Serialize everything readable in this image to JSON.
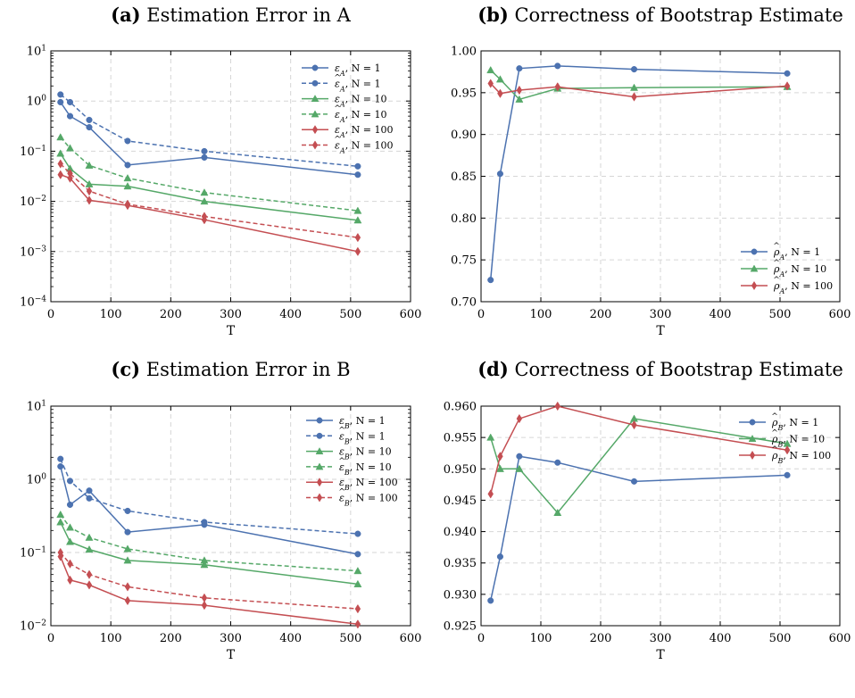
{
  "colors": {
    "blue": "#4c72b0",
    "green": "#55a868",
    "red": "#c44e52"
  },
  "chart_data": [
    {
      "type": "line",
      "panel_label": "(a)",
      "title": "Estimation Error in A",
      "xlabel": "T",
      "ylabel": "",
      "xlim": [
        0,
        600
      ],
      "ylim": [
        0.0001,
        10
      ],
      "yscale": "log",
      "grid": true,
      "legend_position": "top-right",
      "xticks": [
        "0",
        "100",
        "200",
        "300",
        "400",
        "500",
        "600"
      ],
      "yticks": [
        {
          "value": 10,
          "base": "10",
          "exp": "1"
        },
        {
          "value": 1,
          "base": "10",
          "exp": "0"
        },
        {
          "value": 0.1,
          "base": "10",
          "exp": "−1"
        },
        {
          "value": 0.01,
          "base": "10",
          "exp": "−2"
        },
        {
          "value": 0.001,
          "base": "10",
          "exp": "−3"
        },
        {
          "value": 0.0001,
          "base": "10",
          "exp": "−4"
        }
      ],
      "x": [
        16,
        32,
        64,
        128,
        256,
        512
      ],
      "series": [
        {
          "name": "ε_A, N = 1",
          "sym": "ε",
          "sub": "A",
          "hat": false,
          "rest": ", N = 1",
          "color": "blue",
          "dashed": false,
          "marker": "circle",
          "values": [
            0.95,
            0.5,
            0.3,
            0.053,
            0.075,
            0.034
          ]
        },
        {
          "name": "ε̂_A, N = 1",
          "sym": "ε",
          "sub": "A",
          "hat": true,
          "rest": ", N = 1",
          "color": "blue",
          "dashed": true,
          "marker": "circle",
          "values": [
            1.35,
            0.95,
            0.42,
            0.16,
            0.1,
            0.05
          ]
        },
        {
          "name": "ε_A, N = 10",
          "sym": "ε",
          "sub": "A",
          "hat": false,
          "rest": ", N = 10",
          "color": "green",
          "dashed": false,
          "marker": "triangle",
          "values": [
            0.09,
            0.045,
            0.022,
            0.02,
            0.01,
            0.0042
          ]
        },
        {
          "name": "ε̂_A, N = 10",
          "sym": "ε",
          "sub": "A",
          "hat": true,
          "rest": ", N = 10",
          "color": "green",
          "dashed": true,
          "marker": "triangle",
          "values": [
            0.19,
            0.115,
            0.052,
            0.029,
            0.015,
            0.0065
          ]
        },
        {
          "name": "ε_A, N = 100",
          "sym": "ε",
          "sub": "A",
          "hat": false,
          "rest": ", N = 100",
          "color": "red",
          "dashed": false,
          "marker": "diamond",
          "values": [
            0.034,
            0.029,
            0.0105,
            0.0083,
            0.0043,
            0.001
          ]
        },
        {
          "name": "ε̂_A, N = 100",
          "sym": "ε",
          "sub": "A",
          "hat": true,
          "rest": ", N = 100",
          "color": "red",
          "dashed": true,
          "marker": "diamond",
          "values": [
            0.056,
            0.036,
            0.016,
            0.0088,
            0.005,
            0.0019
          ]
        }
      ]
    },
    {
      "type": "line",
      "panel_label": "(b)",
      "title": "Correctness of Bootstrap Estimate",
      "xlabel": "T",
      "ylabel": "",
      "xlim": [
        0,
        600
      ],
      "ylim": [
        0.7,
        1.0
      ],
      "yscale": "linear",
      "grid": true,
      "legend_position": "bottom-right",
      "xticks": [
        "0",
        "100",
        "200",
        "300",
        "400",
        "500",
        "600"
      ],
      "yticks": [
        {
          "value": 1.0,
          "label": "1.00"
        },
        {
          "value": 0.95,
          "label": "0.95"
        },
        {
          "value": 0.9,
          "label": "0.90"
        },
        {
          "value": 0.85,
          "label": "0.85"
        },
        {
          "value": 0.8,
          "label": "0.80"
        },
        {
          "value": 0.75,
          "label": "0.75"
        },
        {
          "value": 0.7,
          "label": "0.70"
        }
      ],
      "x": [
        16,
        32,
        64,
        128,
        256,
        512
      ],
      "series": [
        {
          "name": "ρ̂_A, N = 1",
          "sym": "ρ",
          "sub": "A",
          "hat": true,
          "rest": ", N = 1",
          "color": "blue",
          "dashed": false,
          "marker": "circle",
          "values": [
            0.726,
            0.853,
            0.979,
            0.982,
            0.978,
            0.973
          ]
        },
        {
          "name": "ρ̂_A, N = 10",
          "sym": "ρ",
          "sub": "A",
          "hat": true,
          "rest": ", N = 10",
          "color": "green",
          "dashed": false,
          "marker": "triangle",
          "values": [
            0.977,
            0.966,
            0.942,
            0.955,
            0.956,
            0.957
          ]
        },
        {
          "name": "ρ̂_A, N = 100",
          "sym": "ρ",
          "sub": "A",
          "hat": true,
          "rest": ", N = 100",
          "color": "red",
          "dashed": false,
          "marker": "diamond",
          "values": [
            0.961,
            0.949,
            0.953,
            0.957,
            0.945,
            0.958
          ]
        }
      ]
    },
    {
      "type": "line",
      "panel_label": "(c)",
      "title": "Estimation Error in B",
      "xlabel": "T",
      "ylabel": "",
      "xlim": [
        0,
        600
      ],
      "ylim": [
        0.01,
        10
      ],
      "yscale": "log",
      "grid": true,
      "legend_position": "top-right",
      "xticks": [
        "0",
        "100",
        "200",
        "300",
        "400",
        "500",
        "600"
      ],
      "yticks": [
        {
          "value": 10,
          "base": "10",
          "exp": "1"
        },
        {
          "value": 1,
          "base": "10",
          "exp": "0"
        },
        {
          "value": 0.1,
          "base": "10",
          "exp": "−1"
        },
        {
          "value": 0.01,
          "base": "10",
          "exp": "−2"
        }
      ],
      "x": [
        16,
        32,
        64,
        128,
        256,
        512
      ],
      "series": [
        {
          "name": "ε_B, N = 1",
          "sym": "ε",
          "sub": "B",
          "hat": false,
          "rest": ", N = 1",
          "color": "blue",
          "dashed": false,
          "marker": "circle",
          "values": [
            1.5,
            0.45,
            0.7,
            0.19,
            0.24,
            0.095
          ]
        },
        {
          "name": "ε̂_B, N = 1",
          "sym": "ε",
          "sub": "B",
          "hat": true,
          "rest": ", N = 1",
          "color": "blue",
          "dashed": true,
          "marker": "circle",
          "values": [
            1.9,
            0.95,
            0.55,
            0.37,
            0.26,
            0.18
          ]
        },
        {
          "name": "ε_B, N = 10",
          "sym": "ε",
          "sub": "B",
          "hat": false,
          "rest": ", N = 10",
          "color": "green",
          "dashed": false,
          "marker": "triangle",
          "values": [
            0.26,
            0.14,
            0.11,
            0.078,
            0.068,
            0.037
          ]
        },
        {
          "name": "ε̂_B, N = 10",
          "sym": "ε",
          "sub": "B",
          "hat": true,
          "rest": ", N = 10",
          "color": "green",
          "dashed": true,
          "marker": "triangle",
          "values": [
            0.33,
            0.22,
            0.16,
            0.112,
            0.078,
            0.056
          ]
        },
        {
          "name": "ε_B, N = 100",
          "sym": "ε",
          "sub": "B",
          "hat": false,
          "rest": ", N = 100",
          "color": "red",
          "dashed": false,
          "marker": "diamond",
          "values": [
            0.088,
            0.042,
            0.036,
            0.022,
            0.019,
            0.0105
          ]
        },
        {
          "name": "ε̂_B, N = 100",
          "sym": "ε",
          "sub": "B",
          "hat": true,
          "rest": ", N = 100",
          "color": "red",
          "dashed": true,
          "marker": "diamond",
          "values": [
            0.1,
            0.07,
            0.05,
            0.034,
            0.024,
            0.017
          ]
        }
      ]
    },
    {
      "type": "line",
      "panel_label": "(d)",
      "title": "Correctness of Bootstrap Estimate",
      "xlabel": "T",
      "ylabel": "",
      "xlim": [
        0,
        600
      ],
      "ylim": [
        0.925,
        0.96
      ],
      "yscale": "linear",
      "grid": true,
      "legend_position": "top-right",
      "xticks": [
        "0",
        "100",
        "200",
        "300",
        "400",
        "500",
        "600"
      ],
      "yticks": [
        {
          "value": 0.96,
          "label": "0.960"
        },
        {
          "value": 0.955,
          "label": "0.955"
        },
        {
          "value": 0.95,
          "label": "0.950"
        },
        {
          "value": 0.945,
          "label": "0.945"
        },
        {
          "value": 0.94,
          "label": "0.940"
        },
        {
          "value": 0.935,
          "label": "0.935"
        },
        {
          "value": 0.93,
          "label": "0.930"
        },
        {
          "value": 0.925,
          "label": "0.925"
        }
      ],
      "x": [
        16,
        32,
        64,
        128,
        256,
        512
      ],
      "series": [
        {
          "name": "ρ̂_B, N = 1",
          "sym": "ρ",
          "sub": "B",
          "hat": true,
          "rest": ", N = 1",
          "color": "blue",
          "dashed": false,
          "marker": "circle",
          "values": [
            0.929,
            0.936,
            0.952,
            0.951,
            0.948,
            0.949
          ]
        },
        {
          "name": "ρ̂_B, N = 10",
          "sym": "ρ",
          "sub": "B",
          "hat": true,
          "rest": ", N = 10",
          "color": "green",
          "dashed": false,
          "marker": "triangle",
          "values": [
            0.955,
            0.95,
            0.95,
            0.943,
            0.958,
            0.954
          ]
        },
        {
          "name": "ρ̂_B, N = 100",
          "sym": "ρ",
          "sub": "B",
          "hat": true,
          "rest": ", N = 100",
          "color": "red",
          "dashed": false,
          "marker": "diamond",
          "values": [
            0.946,
            0.952,
            0.958,
            0.96,
            0.957,
            0.953
          ]
        }
      ]
    }
  ]
}
